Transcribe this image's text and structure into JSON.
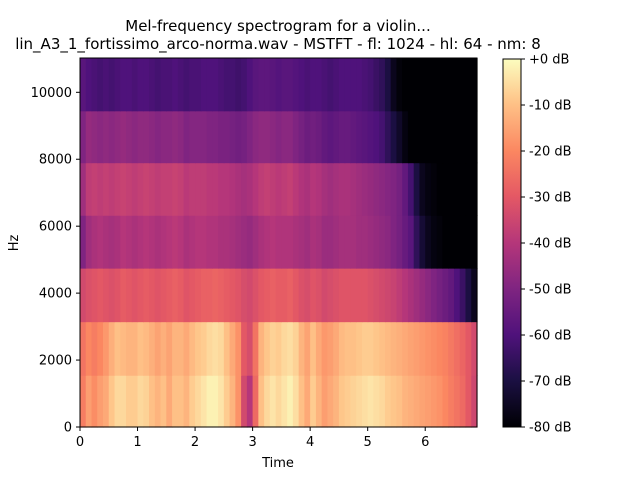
{
  "chart_data": {
    "type": "heatmap",
    "title": "Mel-frequency spectrogram for a violin...",
    "subtitle": "lin_A3_1_fortissimo_arco-norma.wav - MSTFT - fl: 1024 - hl: 64 - nm: 8",
    "xlabel": "Time",
    "ylabel": "Hz",
    "xlim": [
      0,
      6.9
    ],
    "ylim": [
      0,
      11025
    ],
    "x_ticks": [
      0,
      1,
      2,
      3,
      4,
      5,
      6
    ],
    "y_ticks": [
      0,
      2000,
      4000,
      6000,
      8000,
      10000
    ],
    "colorbar": {
      "min": -80,
      "max": 0,
      "ticks": [
        0,
        -10,
        -20,
        -30,
        -40,
        -50,
        -60,
        -70,
        -80
      ],
      "tick_labels": [
        "+0 dB",
        "-10 dB",
        "-20 dB",
        "-30 dB",
        "-40 dB",
        "-50 dB",
        "-60 dB",
        "-70 dB",
        "-80 dB"
      ],
      "colormap": "magma"
    },
    "mel_band_edges_hz": [
      0,
      1550,
      3150,
      4750,
      6330,
      7900,
      9450,
      11025
    ],
    "time_bins": [
      0.0,
      0.1,
      0.2,
      0.3,
      0.4,
      0.5,
      0.6,
      0.7,
      0.8,
      0.9,
      1.0,
      1.1,
      1.2,
      1.3,
      1.4,
      1.5,
      1.6,
      1.7,
      1.8,
      1.9,
      2.0,
      2.1,
      2.2,
      2.3,
      2.4,
      2.5,
      2.6,
      2.7,
      2.8,
      2.9,
      3.0,
      3.1,
      3.2,
      3.3,
      3.4,
      3.5,
      3.6,
      3.7,
      3.8,
      3.9,
      4.0,
      4.1,
      4.2,
      4.3,
      4.4,
      4.5,
      4.6,
      4.7,
      4.8,
      4.9,
      5.0,
      5.1,
      5.2,
      5.3,
      5.4,
      5.5,
      5.6,
      5.7,
      5.8,
      5.9,
      6.0,
      6.1,
      6.2,
      6.3,
      6.4,
      6.5,
      6.6,
      6.7,
      6.8
    ],
    "bin_width": 0.1,
    "values_db": [
      [
        -22,
        -16,
        -19,
        -16,
        -14,
        -9,
        -6,
        -6,
        -8,
        -8,
        -6,
        -7,
        -10,
        -12,
        -10,
        -14,
        -10,
        -10,
        -12,
        -8,
        -6,
        -4,
        -2,
        -2,
        -4,
        -8,
        -12,
        -18,
        -34,
        -40,
        -26,
        -10,
        -6,
        -4,
        -6,
        -4,
        -2,
        -5,
        -10,
        -14,
        -8,
        -12,
        -16,
        -14,
        -12,
        -9,
        -8,
        -7,
        -6,
        -5,
        -4,
        -5,
        -6,
        -8,
        -9,
        -10,
        -12,
        -13,
        -14,
        -15,
        -16,
        -17,
        -18,
        -20,
        -22,
        -24,
        -26,
        -30,
        -35
      ],
      [
        -24,
        -20,
        -22,
        -20,
        -17,
        -13,
        -10,
        -11,
        -12,
        -12,
        -10,
        -11,
        -13,
        -15,
        -13,
        -15,
        -12,
        -12,
        -14,
        -11,
        -9,
        -8,
        -6,
        -5,
        -6,
        -10,
        -14,
        -18,
        -30,
        -33,
        -24,
        -12,
        -9,
        -7,
        -8,
        -6,
        -5,
        -7,
        -12,
        -15,
        -10,
        -14,
        -17,
        -16,
        -14,
        -11,
        -10,
        -10,
        -9,
        -8,
        -8,
        -9,
        -10,
        -11,
        -12,
        -13,
        -14,
        -15,
        -16,
        -17,
        -18,
        -19,
        -20,
        -21,
        -23,
        -25,
        -27,
        -30,
        -34
      ],
      [
        -34,
        -32,
        -31,
        -30,
        -31,
        -32,
        -31,
        -29,
        -30,
        -31,
        -30,
        -29,
        -30,
        -31,
        -30,
        -29,
        -28,
        -29,
        -31,
        -30,
        -29,
        -28,
        -28,
        -27,
        -28,
        -29,
        -30,
        -31,
        -33,
        -34,
        -32,
        -30,
        -29,
        -28,
        -29,
        -29,
        -28,
        -30,
        -32,
        -33,
        -31,
        -32,
        -34,
        -33,
        -32,
        -31,
        -31,
        -31,
        -31,
        -31,
        -32,
        -33,
        -34,
        -35,
        -36,
        -38,
        -40,
        -42,
        -44,
        -46,
        -48,
        -50,
        -52,
        -54,
        -56,
        -60,
        -64,
        -70,
        -76
      ],
      [
        -50,
        -44,
        -42,
        -41,
        -42,
        -43,
        -42,
        -40,
        -41,
        -42,
        -41,
        -40,
        -41,
        -42,
        -41,
        -40,
        -39,
        -40,
        -42,
        -41,
        -40,
        -40,
        -41,
        -41,
        -42,
        -42,
        -43,
        -44,
        -45,
        -46,
        -44,
        -42,
        -41,
        -40,
        -41,
        -41,
        -41,
        -42,
        -43,
        -44,
        -42,
        -43,
        -45,
        -45,
        -44,
        -43,
        -43,
        -43,
        -44,
        -44,
        -45,
        -46,
        -47,
        -48,
        -50,
        -52,
        -55,
        -58,
        -66,
        -72,
        -76,
        -78,
        -79,
        -80,
        -80,
        -80,
        -80,
        -80,
        -80
      ],
      [
        -44,
        -38,
        -37,
        -38,
        -37,
        -38,
        -37,
        -36,
        -37,
        -38,
        -37,
        -36,
        -37,
        -38,
        -37,
        -37,
        -36,
        -37,
        -39,
        -38,
        -38,
        -38,
        -39,
        -39,
        -40,
        -40,
        -41,
        -42,
        -43,
        -42,
        -40,
        -38,
        -37,
        -38,
        -39,
        -38,
        -37,
        -39,
        -41,
        -42,
        -40,
        -41,
        -43,
        -44,
        -43,
        -42,
        -42,
        -43,
        -44,
        -45,
        -46,
        -47,
        -48,
        -49,
        -50,
        -52,
        -56,
        -62,
        -70,
        -76,
        -78,
        -79,
        -80,
        -80,
        -80,
        -80,
        -80,
        -80,
        -80
      ],
      [
        -50,
        -46,
        -47,
        -48,
        -47,
        -48,
        -47,
        -46,
        -47,
        -48,
        -47,
        -47,
        -48,
        -49,
        -48,
        -48,
        -47,
        -48,
        -50,
        -49,
        -49,
        -49,
        -50,
        -50,
        -51,
        -51,
        -52,
        -53,
        -52,
        -50,
        -48,
        -47,
        -47,
        -48,
        -49,
        -48,
        -48,
        -50,
        -52,
        -54,
        -53,
        -54,
        -56,
        -57,
        -56,
        -55,
        -55,
        -56,
        -57,
        -58,
        -59,
        -60,
        -62,
        -66,
        -70,
        -74,
        -78,
        -80,
        -80,
        -80,
        -80,
        -80,
        -80,
        -80,
        -80,
        -80,
        -80,
        -80,
        -80
      ],
      [
        -58,
        -60,
        -61,
        -62,
        -61,
        -62,
        -61,
        -60,
        -60,
        -61,
        -60,
        -60,
        -61,
        -62,
        -61,
        -61,
        -60,
        -61,
        -62,
        -61,
        -61,
        -60,
        -60,
        -60,
        -61,
        -62,
        -62,
        -63,
        -62,
        -60,
        -58,
        -57,
        -57,
        -58,
        -59,
        -58,
        -58,
        -59,
        -60,
        -61,
        -60,
        -60,
        -61,
        -62,
        -61,
        -60,
        -60,
        -60,
        -60,
        -61,
        -62,
        -64,
        -66,
        -70,
        -76,
        -79,
        -80,
        -80,
        -80,
        -80,
        -80,
        -80,
        -80,
        -80,
        -80,
        -80,
        -80,
        -80,
        -80
      ]
    ]
  }
}
